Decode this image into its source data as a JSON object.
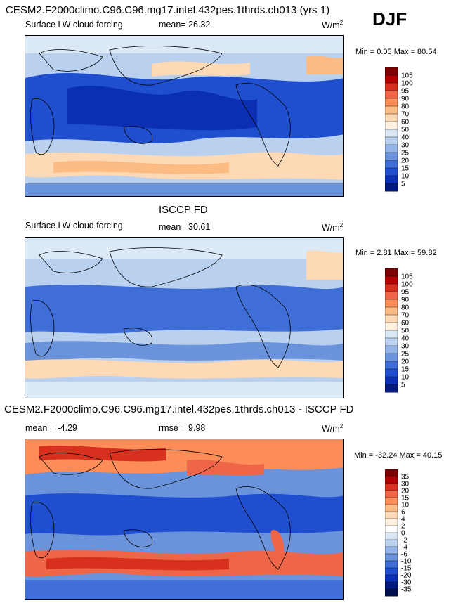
{
  "season": "DJF",
  "panels": [
    {
      "id": "model",
      "title": "CESM2.F2000climo.C96.C96.mg17.intel.432pes.1thrds.ch013 (yrs 1)",
      "left_label": "Surface LW cloud forcing",
      "stat1": "mean=  26.32",
      "stat2": "",
      "units_base": "W/m",
      "units_exp": "2",
      "minmax": "Min =   0.05 Max =  80.54"
    },
    {
      "id": "obs",
      "title": "ISCCP FD",
      "left_label": "Surface LW cloud forcing",
      "stat1": "mean=  30.61",
      "stat2": "",
      "units_base": "W/m",
      "units_exp": "2",
      "minmax": "Min =   2.81 Max =  59.82"
    },
    {
      "id": "diff",
      "title": "CESM2.F2000climo.C96.C96.mg17.intel.432pes.1thrds.ch013 - ISCCP FD",
      "left_label": "mean =  -4.29",
      "stat1": "rmse =   9.98",
      "stat2": "",
      "units_base": "W/m",
      "units_exp": "2",
      "minmax": "Min = -32.24 Max =  40.15"
    }
  ],
  "chart_data": [
    {
      "type": "heatmap",
      "panel": "model",
      "title": "CESM2.F2000climo.C96.C96.mg17.intel.432pes.1thrds.ch013 (yrs 1)",
      "variable": "Surface LW cloud forcing",
      "units": "W/m2",
      "mean": 26.32,
      "min": 0.05,
      "max": 80.54,
      "colorbar_levels": [
        "105",
        "100",
        "95",
        "90",
        "80",
        "70",
        "60",
        "50",
        "40",
        "30",
        "25",
        "20",
        "15",
        "10",
        "5"
      ],
      "colorbar_colors": [
        "#7f0000",
        "#b30000",
        "#d7301f",
        "#ef6548",
        "#fc8d59",
        "#fdbb84",
        "#fdd9b5",
        "#fff0e0",
        "#dbe8f6",
        "#b9d1ef",
        "#93b4e6",
        "#6a93dc",
        "#3f6fd6",
        "#1f4fcf",
        "#0a2fb3",
        "#001a80"
      ]
    },
    {
      "type": "heatmap",
      "panel": "obs",
      "title": "ISCCP FD",
      "variable": "Surface LW cloud forcing",
      "units": "W/m2",
      "mean": 30.61,
      "min": 2.81,
      "max": 59.82,
      "colorbar_levels": [
        "105",
        "100",
        "95",
        "90",
        "80",
        "70",
        "60",
        "50",
        "40",
        "30",
        "25",
        "20",
        "15",
        "10",
        "5"
      ],
      "colorbar_colors": [
        "#7f0000",
        "#b30000",
        "#d7301f",
        "#ef6548",
        "#fc8d59",
        "#fdbb84",
        "#fdd9b5",
        "#fff0e0",
        "#dbe8f6",
        "#b9d1ef",
        "#93b4e6",
        "#6a93dc",
        "#3f6fd6",
        "#1f4fcf",
        "#0a2fb3",
        "#001a80"
      ]
    },
    {
      "type": "heatmap",
      "panel": "diff",
      "title": "CESM2.F2000climo.C96.C96.mg17.intel.432pes.1thrds.ch013 - ISCCP FD",
      "units": "W/m2",
      "mean": -4.29,
      "rmse": 9.98,
      "min": -32.24,
      "max": 40.15,
      "colorbar_levels": [
        "35",
        "30",
        "20",
        "15",
        "10",
        "6",
        "4",
        "2",
        "0",
        "-2",
        "-4",
        "-6",
        "-10",
        "-15",
        "-20",
        "-30",
        "-35"
      ],
      "colorbar_colors": [
        "#7f0000",
        "#b30000",
        "#d7301f",
        "#ef6548",
        "#fc8d59",
        "#fdbb84",
        "#fdd9b5",
        "#fff0e0",
        "#ffffff",
        "#dbe8f6",
        "#b9d1ef",
        "#93b4e6",
        "#6a93dc",
        "#3f6fd6",
        "#1f4fcf",
        "#0a2fb3",
        "#001a80",
        "#00104d"
      ]
    }
  ]
}
